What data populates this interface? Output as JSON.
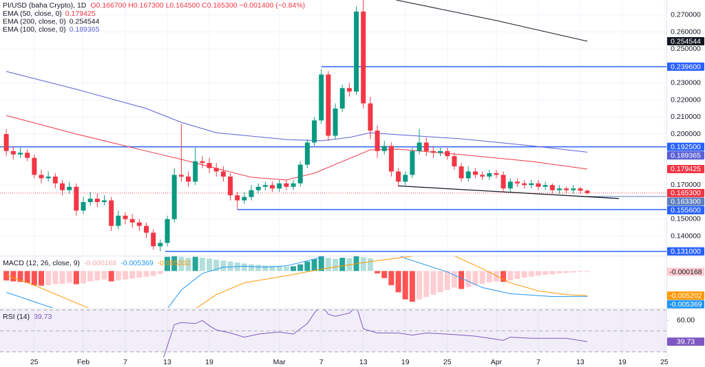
{
  "chart_data": [
    {
      "type": "candlestick",
      "title": "PI/USD (baha Crypto), 1D",
      "ohlc": "O0.166700 H0.167300 L0.164500 C0.165300 −0.001400 (−0.84%)",
      "up_color": "#089981",
      "down_color": "#f23645",
      "open": [
        0.2,
        0.19,
        0.188,
        0.189,
        0.186,
        0.176,
        0.174,
        0.175,
        0.171,
        0.167,
        0.169,
        0.155,
        0.16,
        0.162,
        0.16,
        0.161,
        0.146,
        0.152,
        0.15,
        0.148,
        0.146,
        0.142,
        0.134,
        0.136,
        0.15,
        0.176,
        0.175,
        0.172,
        0.184,
        0.183,
        0.18,
        0.178,
        0.175,
        0.164,
        0.161,
        0.163,
        0.167,
        0.169,
        0.17,
        0.168,
        0.171,
        0.169,
        0.171,
        0.182,
        0.195,
        0.208,
        0.235,
        0.199,
        0.215,
        0.227,
        0.225,
        0.272,
        0.218,
        0.202,
        0.19,
        0.193,
        0.178,
        0.172,
        0.176,
        0.19,
        0.195,
        0.19,
        0.189,
        0.19,
        0.187,
        0.181,
        0.174,
        0.178,
        0.176,
        0.175,
        0.177,
        0.176,
        0.168,
        0.172,
        0.171,
        0.17,
        0.171,
        0.169,
        0.17,
        0.167,
        0.168,
        0.167,
        0.168,
        0.1667
      ],
      "high": [
        0.203,
        0.193,
        0.192,
        0.191,
        0.188,
        0.179,
        0.178,
        0.177,
        0.173,
        0.172,
        0.171,
        0.163,
        0.166,
        0.165,
        0.164,
        0.163,
        0.155,
        0.154,
        0.153,
        0.15,
        0.148,
        0.144,
        0.138,
        0.152,
        0.18,
        0.206,
        0.178,
        0.192,
        0.187,
        0.186,
        0.183,
        0.181,
        0.177,
        0.166,
        0.166,
        0.17,
        0.171,
        0.172,
        0.172,
        0.173,
        0.173,
        0.173,
        0.184,
        0.197,
        0.21,
        0.238,
        0.237,
        0.218,
        0.229,
        0.23,
        0.275,
        0.279,
        0.222,
        0.205,
        0.196,
        0.195,
        0.18,
        0.178,
        0.192,
        0.203,
        0.198,
        0.193,
        0.192,
        0.192,
        0.189,
        0.183,
        0.181,
        0.18,
        0.178,
        0.179,
        0.179,
        0.178,
        0.174,
        0.174,
        0.173,
        0.173,
        0.173,
        0.172,
        0.171,
        0.17,
        0.169,
        0.17,
        0.169,
        0.1673
      ],
      "low": [
        0.187,
        0.185,
        0.186,
        0.184,
        0.174,
        0.171,
        0.172,
        0.168,
        0.164,
        0.165,
        0.152,
        0.153,
        0.158,
        0.157,
        0.158,
        0.143,
        0.144,
        0.147,
        0.145,
        0.143,
        0.139,
        0.132,
        0.131,
        0.134,
        0.148,
        0.172,
        0.169,
        0.17,
        0.18,
        0.177,
        0.175,
        0.172,
        0.161,
        0.1556,
        0.159,
        0.161,
        0.165,
        0.167,
        0.166,
        0.166,
        0.167,
        0.167,
        0.169,
        0.18,
        0.193,
        0.206,
        0.196,
        0.197,
        0.213,
        0.222,
        0.223,
        0.215,
        0.197,
        0.186,
        0.188,
        0.175,
        0.169,
        0.17,
        0.174,
        0.188,
        0.187,
        0.186,
        0.187,
        0.185,
        0.179,
        0.172,
        0.172,
        0.174,
        0.173,
        0.173,
        0.174,
        0.166,
        0.166,
        0.169,
        0.168,
        0.168,
        0.167,
        0.167,
        0.165,
        0.165,
        0.165,
        0.165,
        0.1648,
        0.1645
      ],
      "close": [
        0.19,
        0.188,
        0.189,
        0.186,
        0.176,
        0.174,
        0.175,
        0.171,
        0.167,
        0.169,
        0.155,
        0.16,
        0.162,
        0.16,
        0.161,
        0.146,
        0.152,
        0.15,
        0.148,
        0.146,
        0.142,
        0.134,
        0.136,
        0.15,
        0.176,
        0.175,
        0.172,
        0.184,
        0.183,
        0.18,
        0.178,
        0.175,
        0.164,
        0.161,
        0.163,
        0.167,
        0.169,
        0.17,
        0.168,
        0.171,
        0.169,
        0.171,
        0.182,
        0.195,
        0.208,
        0.235,
        0.199,
        0.215,
        0.227,
        0.225,
        0.272,
        0.218,
        0.202,
        0.19,
        0.193,
        0.178,
        0.172,
        0.176,
        0.19,
        0.195,
        0.19,
        0.189,
        0.19,
        0.187,
        0.181,
        0.174,
        0.178,
        0.176,
        0.175,
        0.177,
        0.176,
        0.168,
        0.172,
        0.171,
        0.17,
        0.171,
        0.169,
        0.17,
        0.167,
        0.168,
        0.167,
        0.168,
        0.1667,
        0.1653
      ],
      "series": [
        {
          "name": "EMA (50, close, 0)",
          "color": "#f23645",
          "x": [
            0,
            10,
            20,
            25,
            30,
            35,
            40,
            44,
            48,
            52,
            56,
            65,
            75,
            83
          ],
          "values": [
            0.2109,
            0.2,
            0.19,
            0.1851,
            0.1798,
            0.1746,
            0.173,
            0.177,
            0.1839,
            0.1907,
            0.1911,
            0.1879,
            0.1839,
            0.179425
          ]
        },
        {
          "name": "EMA (200, close, 0)",
          "color": "#131722",
          "x": [
            55.7,
            70,
            83
          ],
          "values": [
            0.2788,
            0.2667,
            0.254544
          ]
        },
        {
          "name": "EMA (100, close, 0)",
          "color": "#5b5fd6",
          "x": [
            0,
            10,
            20,
            25,
            30,
            40,
            45,
            49,
            52,
            56,
            65,
            75,
            83
          ],
          "values": [
            0.2368,
            0.2263,
            0.215,
            0.2069,
            0.2008,
            0.1968,
            0.196,
            0.198,
            0.2008,
            0.1996,
            0.1972,
            0.1931,
            0.189365
          ]
        }
      ],
      "level_color": "#2962ff",
      "levels": [
        {
          "value": 0.2396,
          "label": "0.239600",
          "x0": 45
        },
        {
          "value": 0.1925,
          "label": "0.192500"
        },
        {
          "value": 0.1556,
          "label": "0.155600",
          "x0": 33
        },
        {
          "value": 0.131,
          "label": "0.131000",
          "x0": 22.7
        }
      ],
      "markers": [
        {
          "value": 0.1653,
          "label": "0.165300",
          "color": "#f23645",
          "style": "dotted"
        },
        {
          "value": 0.1633,
          "label": "0.163300",
          "color": "#5d7fbf",
          "x0": 82
        }
      ],
      "trendlines": [
        {
          "x": [
            56,
            87.5
          ],
          "values": [
            0.1695,
            0.1621
          ],
          "color": "#131722"
        }
      ],
      "ylim": [
        0.1285,
        0.2788
      ],
      "yticks": [
        {
          "value": 0.27,
          "label": "0.270000"
        },
        {
          "value": 0.26,
          "label": "0.260000"
        },
        {
          "value": 0.25,
          "label": "0.250000"
        },
        {
          "value": 0.23,
          "label": "0.230000"
        },
        {
          "value": 0.22,
          "label": "0.220000"
        },
        {
          "value": 0.21,
          "label": "0.210000"
        },
        {
          "value": 0.2,
          "label": "0.200000"
        },
        {
          "value": 0.17,
          "label": "0.170000"
        },
        {
          "value": 0.15,
          "label": "0.150000"
        },
        {
          "value": 0.14,
          "label": "0.140000"
        }
      ],
      "grid": true
    },
    {
      "type": "macd",
      "title": "MACD (12, 26, close, 9)",
      "histogram": {
        "colors": [
          "#26a69a",
          "#b2dfdb",
          "#ff5252",
          "#ffcdd2"
        ],
        "values": [
          -0.002,
          -0.0022,
          -0.0023,
          -0.0025,
          -0.003,
          -0.0031,
          -0.003,
          -0.0028,
          -0.0027,
          -0.0025,
          -0.0028,
          -0.0026,
          -0.0022,
          -0.002,
          -0.0018,
          -0.0022,
          -0.002,
          -0.0018,
          -0.0016,
          -0.0014,
          -0.0012,
          -0.001,
          -0.0006,
          0.003,
          0.0031,
          0.003,
          0.0028,
          0.003,
          0.0028,
          0.0026,
          0.0024,
          0.0022,
          0.002,
          0.0018,
          0.0016,
          0.0014,
          0.0013,
          0.0012,
          0.0011,
          0.001,
          0.0009,
          0.001,
          0.0014,
          0.002,
          0.0025,
          0.0031,
          0.0028,
          0.0026,
          0.0028,
          0.0027,
          0.0031,
          0.0029,
          0.0027,
          -0.0005,
          -0.0015,
          -0.003,
          -0.0045,
          -0.006,
          -0.0065,
          -0.006,
          -0.0055,
          -0.005,
          -0.0045,
          -0.004,
          -0.0035,
          -0.0038,
          -0.0034,
          -0.003,
          -0.0027,
          -0.0024,
          -0.0022,
          -0.0023,
          -0.002,
          -0.0017,
          -0.0014,
          -0.0012,
          -0.001,
          -0.0008,
          -0.0007,
          -0.0005,
          -0.0004,
          -0.0003,
          -0.0002,
          -0.000168
        ]
      },
      "series": [
        {
          "color": "#2196f3",
          "x": [
            0,
            4,
            8,
            23,
            25,
            28,
            31,
            34,
            37,
            40,
            44,
            48,
            55,
            57,
            63,
            68,
            72,
            78,
            83
          ],
          "values": [
            -0.0045,
            -0.0065,
            -0.0085,
            -0.008,
            -0.004,
            -0.0005,
            0.0008,
            0.001,
            0.0008,
            0.0011,
            0.0025,
            0.0045,
            0.004,
            0.0027,
            -0.0002,
            -0.0035,
            -0.0048,
            -0.0054,
            -0.005369
          ]
        },
        {
          "color": "#ff9800",
          "x": [
            0,
            4,
            8,
            12,
            27,
            30,
            34,
            40,
            45,
            52,
            60,
            64,
            68,
            72,
            76,
            80,
            83
          ],
          "values": [
            -0.0009,
            -0.003,
            -0.0055,
            -0.008,
            -0.008,
            -0.005,
            -0.0025,
            -0.001,
            0.0004,
            0.002,
            0.0035,
            0.0032,
            0.0005,
            -0.0025,
            -0.0042,
            -0.005,
            -0.005202
          ]
        }
      ],
      "ylim": [
        -0.0078,
        0.0031
      ]
    },
    {
      "type": "line",
      "title": "RSI (14)",
      "series": [
        {
          "color": "#7e57c2",
          "x": [
            22,
            24,
            25,
            27,
            28,
            29,
            30,
            32,
            34,
            36,
            39,
            41,
            43,
            44,
            45,
            46,
            47,
            49,
            50,
            51,
            53,
            56,
            58,
            60,
            63,
            67,
            71,
            72,
            75,
            80,
            83
          ],
          "values": [
            15,
            56,
            58,
            57,
            60,
            55,
            51,
            48,
            44,
            47,
            49,
            47,
            57,
            67,
            75,
            66,
            64,
            67,
            74,
            52,
            48,
            48,
            46,
            48,
            47,
            45,
            41,
            44,
            43,
            43,
            39.73
          ]
        }
      ],
      "band": [
        30,
        70
      ],
      "band_color": "#7e57c2",
      "levels": [
        70,
        50,
        30
      ],
      "ylim": [
        24.7,
        70.7
      ],
      "yticks": [
        {
          "value": 60,
          "label": "60.00"
        }
      ],
      "xlim": [
        -0.9,
        94.3
      ],
      "xticks": [
        {
          "value": 4,
          "label": "25"
        },
        {
          "value": 11,
          "label": "Feb"
        },
        {
          "value": 17,
          "label": "7"
        },
        {
          "value": 23,
          "label": "13"
        },
        {
          "value": 29,
          "label": "19"
        },
        {
          "value": 39,
          "label": "Mar"
        },
        {
          "value": 45,
          "label": "7"
        },
        {
          "value": 51,
          "label": "13"
        },
        {
          "value": 57,
          "label": "19"
        },
        {
          "value": 63,
          "label": "25"
        },
        {
          "value": 70,
          "label": "Apr"
        },
        {
          "value": 76,
          "label": "7"
        },
        {
          "value": 82,
          "label": "13"
        },
        {
          "value": 88,
          "label": "19"
        },
        {
          "value": 94,
          "label": "25"
        }
      ]
    }
  ]
}
